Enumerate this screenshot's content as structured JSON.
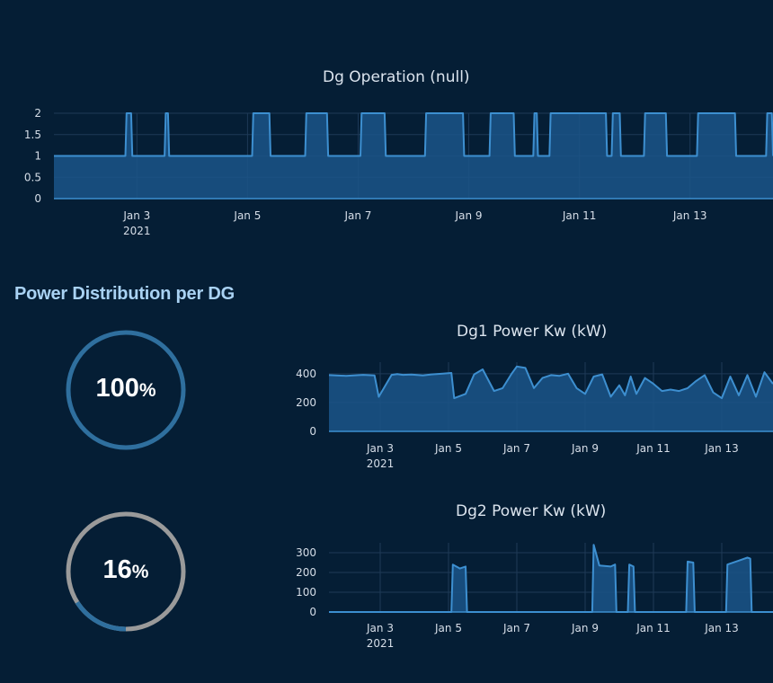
{
  "colors": {
    "background": "#051e35",
    "line": "#3d8fd0",
    "fill": "#1b5588",
    "grid": "#1e3a57",
    "gauge_track": "#2f6f9e",
    "gauge_track_gray": "#9a9a9a"
  },
  "section_title": "Power Distribution per DG",
  "gauges": [
    {
      "value": 100,
      "number": "100",
      "unit": "%"
    },
    {
      "value": 16,
      "number": "16",
      "unit": "%"
    }
  ],
  "chart_data": [
    {
      "type": "area",
      "title": "Dg Operation (null)",
      "x_start": "2021-01-01T12:00",
      "x_end": "2021-01-14T12:00",
      "x_ticks": [
        "Jan 3",
        "Jan 5",
        "Jan 7",
        "Jan 9",
        "Jan 11",
        "Jan 13"
      ],
      "x_tick_year": "2021",
      "ylim": [
        0,
        2
      ],
      "y_ticks": [
        "0",
        "0.5",
        "1",
        "1.5",
        "2"
      ],
      "y_tick_values": [
        0,
        0.5,
        1,
        1.5,
        2
      ],
      "series": [
        {
          "baseline": 1,
          "pulses": [
            {
              "start": "2021-01-02T19:00",
              "end": "2021-01-02T22:00",
              "value": 2
            },
            {
              "start": "2021-01-03T12:00",
              "end": "2021-01-03T14:00",
              "value": 2
            },
            {
              "start": "2021-01-05T02:00",
              "end": "2021-01-05T10:00",
              "value": 2
            },
            {
              "start": "2021-01-06T01:00",
              "end": "2021-01-06T11:00",
              "value": 2
            },
            {
              "start": "2021-01-07T01:00",
              "end": "2021-01-07T12:00",
              "value": 2
            },
            {
              "start": "2021-01-08T05:00",
              "end": "2021-01-08T22:00",
              "value": 2
            },
            {
              "start": "2021-01-09T09:00",
              "end": "2021-01-09T20:00",
              "value": 2
            },
            {
              "start": "2021-01-10T04:00",
              "end": "2021-01-10T06:00",
              "value": 2
            },
            {
              "start": "2021-01-10T11:00",
              "end": "2021-01-11T12:00",
              "value": 2
            },
            {
              "start": "2021-01-11T14:00",
              "end": "2021-01-11T18:00",
              "value": 2
            },
            {
              "start": "2021-01-12T04:00",
              "end": "2021-01-12T14:00",
              "value": 2
            },
            {
              "start": "2021-01-13T03:00",
              "end": "2021-01-13T20:00",
              "value": 2
            },
            {
              "start": "2021-01-14T09:00",
              "end": "2021-01-14T12:00",
              "value": 2
            }
          ]
        }
      ]
    },
    {
      "type": "area",
      "title": "Dg1 Power Kw (kW)",
      "x_start": "2021-01-01T12:00",
      "x_end": "2021-01-14T12:00",
      "x_ticks": [
        "Jan 3",
        "Jan 5",
        "Jan 7",
        "Jan 9",
        "Jan 11",
        "Jan 13"
      ],
      "x_tick_year": "2021",
      "ylim": [
        0,
        480
      ],
      "y_ticks": [
        "0",
        "200",
        "400"
      ],
      "y_tick_values": [
        0,
        200,
        400
      ],
      "series": [
        {
          "x": [
            "2021-01-01T12:00",
            "2021-01-02T00:00",
            "2021-01-02T12:00",
            "2021-01-02T20:00",
            "2021-01-02T23:00",
            "2021-01-03T08:00",
            "2021-01-03T12:00",
            "2021-01-03T16:00",
            "2021-01-03T22:00",
            "2021-01-04T06:00",
            "2021-01-04T12:00",
            "2021-01-04T20:00",
            "2021-01-05T02:00",
            "2021-01-05T04:00",
            "2021-01-05T12:00",
            "2021-01-05T18:00",
            "2021-01-06T00:00",
            "2021-01-06T08:00",
            "2021-01-06T14:00",
            "2021-01-06T20:00",
            "2021-01-07T00:00",
            "2021-01-07T06:00",
            "2021-01-07T12:00",
            "2021-01-07T18:00",
            "2021-01-08T00:00",
            "2021-01-08T06:00",
            "2021-01-08T12:00",
            "2021-01-08T18:00",
            "2021-01-09T00:00",
            "2021-01-09T06:00",
            "2021-01-09T12:00",
            "2021-01-09T18:00",
            "2021-01-10T00:00",
            "2021-01-10T04:00",
            "2021-01-10T08:00",
            "2021-01-10T12:00",
            "2021-01-10T18:00",
            "2021-01-11T00:00",
            "2021-01-11T06:00",
            "2021-01-11T12:00",
            "2021-01-11T18:00",
            "2021-01-12T00:00",
            "2021-01-12T06:00",
            "2021-01-12T12:00",
            "2021-01-12T18:00",
            "2021-01-13T00:00",
            "2021-01-13T06:00",
            "2021-01-13T12:00",
            "2021-01-13T18:00",
            "2021-01-14T00:00",
            "2021-01-14T06:00",
            "2021-01-14T12:00"
          ],
          "y": [
            390,
            385,
            392,
            388,
            240,
            392,
            398,
            392,
            394,
            388,
            395,
            400,
            405,
            230,
            260,
            395,
            430,
            280,
            300,
            395,
            450,
            440,
            300,
            370,
            390,
            385,
            400,
            300,
            260,
            380,
            395,
            240,
            320,
            250,
            380,
            260,
            370,
            330,
            280,
            290,
            280,
            300,
            350,
            390,
            270,
            230,
            380,
            250,
            390,
            240,
            410,
            330
          ]
        }
      ]
    },
    {
      "type": "area",
      "title": "Dg2 Power Kw (kW)",
      "x_start": "2021-01-01T12:00",
      "x_end": "2021-01-14T12:00",
      "x_ticks": [
        "Jan 3",
        "Jan 5",
        "Jan 7",
        "Jan 9",
        "Jan 11",
        "Jan 13"
      ],
      "x_tick_year": "2021",
      "ylim": [
        0,
        350
      ],
      "y_ticks": [
        "0",
        "100",
        "200",
        "300"
      ],
      "y_tick_values": [
        0,
        100,
        200,
        300
      ],
      "series": [
        {
          "x": [
            "2021-01-01T12:00",
            "2021-01-05T02:00",
            "2021-01-05T03:00",
            "2021-01-05T08:00",
            "2021-01-05T12:00",
            "2021-01-05T13:00",
            "2021-01-09T05:00",
            "2021-01-09T06:00",
            "2021-01-09T10:00",
            "2021-01-09T18:00",
            "2021-01-09T21:00",
            "2021-01-09T22:00",
            "2021-01-10T06:00",
            "2021-01-10T07:00",
            "2021-01-10T10:00",
            "2021-01-10T11:00",
            "2021-01-11T23:00",
            "2021-01-12T00:00",
            "2021-01-12T04:00",
            "2021-01-12T05:00",
            "2021-01-13T03:00",
            "2021-01-13T04:00",
            "2021-01-13T12:00",
            "2021-01-13T18:00",
            "2021-01-13T20:00",
            "2021-01-13T21:00",
            "2021-01-14T12:00"
          ],
          "y": [
            0,
            0,
            240,
            220,
            230,
            0,
            0,
            340,
            235,
            230,
            240,
            0,
            0,
            240,
            230,
            0,
            0,
            255,
            250,
            0,
            0,
            240,
            260,
            275,
            270,
            0,
            0
          ]
        }
      ]
    }
  ]
}
